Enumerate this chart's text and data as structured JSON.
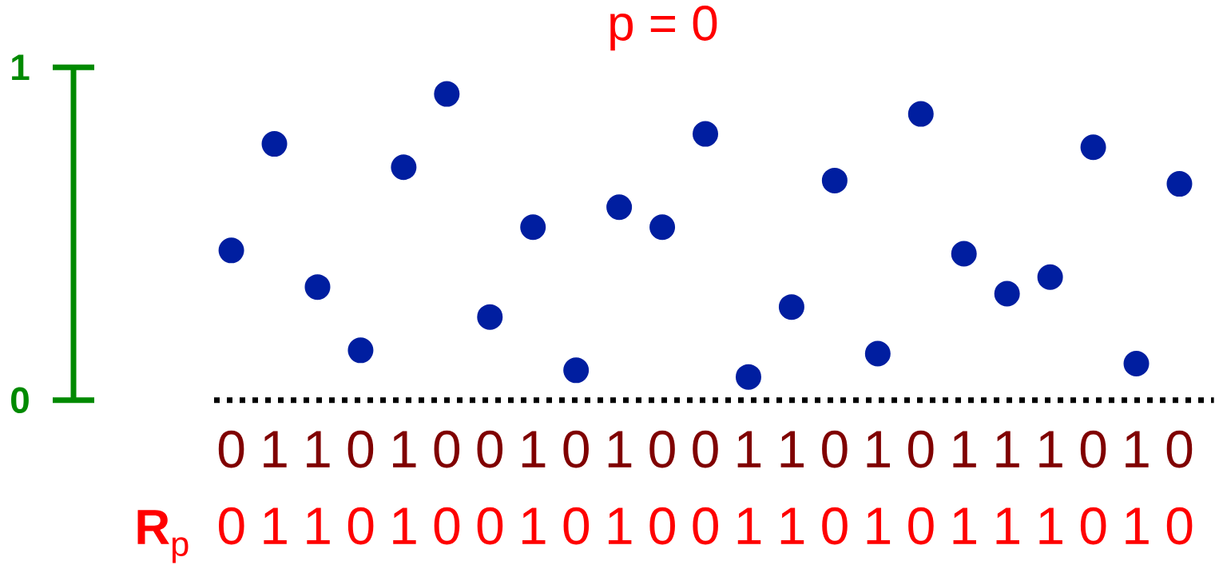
{
  "chart_data": {
    "type": "scatter",
    "title": "p = 0",
    "categories": [
      "0",
      "1",
      "1",
      "0",
      "1",
      "0",
      "0",
      "1",
      "0",
      "1",
      "0",
      "0",
      "1",
      "1",
      "0",
      "1",
      "0",
      "1",
      "1",
      "1",
      "0",
      "1",
      "0"
    ],
    "values": [
      0.45,
      0.77,
      0.34,
      0.15,
      0.7,
      0.92,
      0.25,
      0.52,
      0.09,
      0.58,
      0.52,
      0.8,
      0.07,
      0.28,
      0.66,
      0.14,
      0.86,
      0.44,
      0.32,
      0.37,
      0.76,
      0.11,
      0.65
    ],
    "color": "#001ea0",
    "marker": "circle",
    "ylim": [
      0,
      1
    ],
    "yticks": [
      0,
      1
    ],
    "annotations": [
      "**R**$_{p}$",
      "0 1 1 0 1 0 0 1 0 1 0 0 1 1 0 1 0 1 1 1 0 1 0"
    ]
  }
}
